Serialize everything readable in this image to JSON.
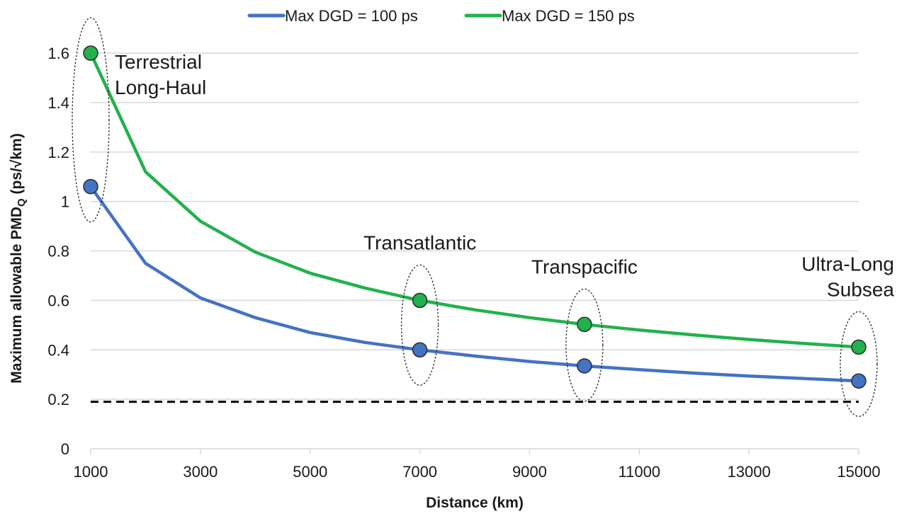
{
  "chart_data": {
    "type": "line",
    "title": "",
    "xlabel": "Distance (km)",
    "ylabel": "Maximum allowable PMD",
    "ylabel_sub": "Q",
    "ylabel_unit": " (ps/√km)",
    "xlim": [
      1000,
      15000
    ],
    "ylim": [
      0,
      1.6
    ],
    "x_ticks": [
      1000,
      3000,
      5000,
      7000,
      9000,
      11000,
      13000,
      15000
    ],
    "x_tick_labels": [
      "1000",
      "3000",
      "5000",
      "7000",
      "9000",
      "11000",
      "13000",
      "15000"
    ],
    "y_ticks": [
      0,
      0.2,
      0.4,
      0.6,
      0.8,
      1,
      1.2,
      1.4,
      1.6
    ],
    "y_tick_labels": [
      "0",
      "0.2",
      "0.4",
      "0.6",
      "0.8",
      "1",
      "1.2",
      "1.4",
      "1.6"
    ],
    "grid": true,
    "legend_position": "top",
    "x": [
      1000,
      2000,
      3000,
      4000,
      5000,
      6000,
      7000,
      8000,
      9000,
      10000,
      11000,
      12000,
      13000,
      14000,
      15000
    ],
    "series": [
      {
        "name": "Max DGD = 100 ps",
        "color": "#4472c4",
        "values": [
          1.06,
          0.75,
          0.61,
          0.53,
          0.47,
          0.43,
          0.4,
          0.375,
          0.353,
          0.335,
          0.32,
          0.306,
          0.294,
          0.284,
          0.274
        ],
        "marker_x": [
          1000,
          7000,
          10000,
          15000
        ]
      },
      {
        "name": "Max DGD = 150 ps",
        "color": "#22b14c",
        "values": [
          1.6,
          1.12,
          0.92,
          0.795,
          0.71,
          0.65,
          0.6,
          0.562,
          0.53,
          0.503,
          0.48,
          0.46,
          0.442,
          0.426,
          0.411
        ],
        "marker_x": [
          1000,
          7000,
          10000,
          15000
        ]
      }
    ],
    "reference_line": {
      "y": 0.19,
      "style": "dashed",
      "color": "#000000"
    },
    "annotations": [
      {
        "lines": [
          "Terrestrial",
          "Long-Haul"
        ],
        "x": 1000,
        "anchor": "start"
      },
      {
        "lines": [
          "Transatlantic"
        ],
        "x": 7000,
        "anchor": "middle"
      },
      {
        "lines": [
          "Transpacific"
        ],
        "x": 10000,
        "anchor": "middle"
      },
      {
        "lines": [
          "Ultra-Long",
          "Subsea"
        ],
        "x": 15000,
        "anchor": "end"
      }
    ],
    "highlight_ellipses_x": [
      1000,
      7000,
      10000,
      15000
    ]
  }
}
